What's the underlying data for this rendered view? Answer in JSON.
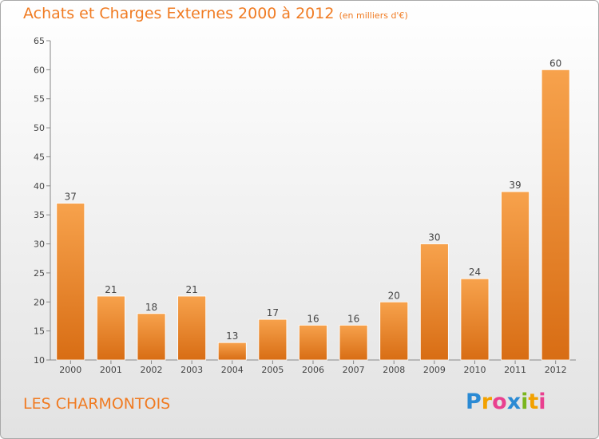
{
  "chart_data": {
    "type": "bar",
    "title": "Achats et Charges Externes 2000 à 2012",
    "subtitle": "(en milliers d'€)",
    "categories": [
      "2000",
      "2001",
      "2002",
      "2003",
      "2004",
      "2005",
      "2006",
      "2007",
      "2008",
      "2009",
      "2010",
      "2011",
      "2012"
    ],
    "values": [
      37,
      21,
      18,
      21,
      13,
      17,
      16,
      16,
      20,
      30,
      24,
      39,
      60
    ],
    "ylim": [
      10,
      65
    ],
    "yticks": [
      10,
      15,
      20,
      25,
      30,
      35,
      40,
      45,
      50,
      55,
      60,
      65
    ],
    "grid": false,
    "colors": {
      "bar_light": "#f7a24c",
      "bar_dark": "#d86d14",
      "text": "#f07b22",
      "axis": "#888888"
    }
  },
  "footer": {
    "commune": "LES CHARMONTOIS",
    "logo_letters": [
      "P",
      "r",
      "o",
      "x",
      "i",
      "t",
      "i"
    ]
  }
}
